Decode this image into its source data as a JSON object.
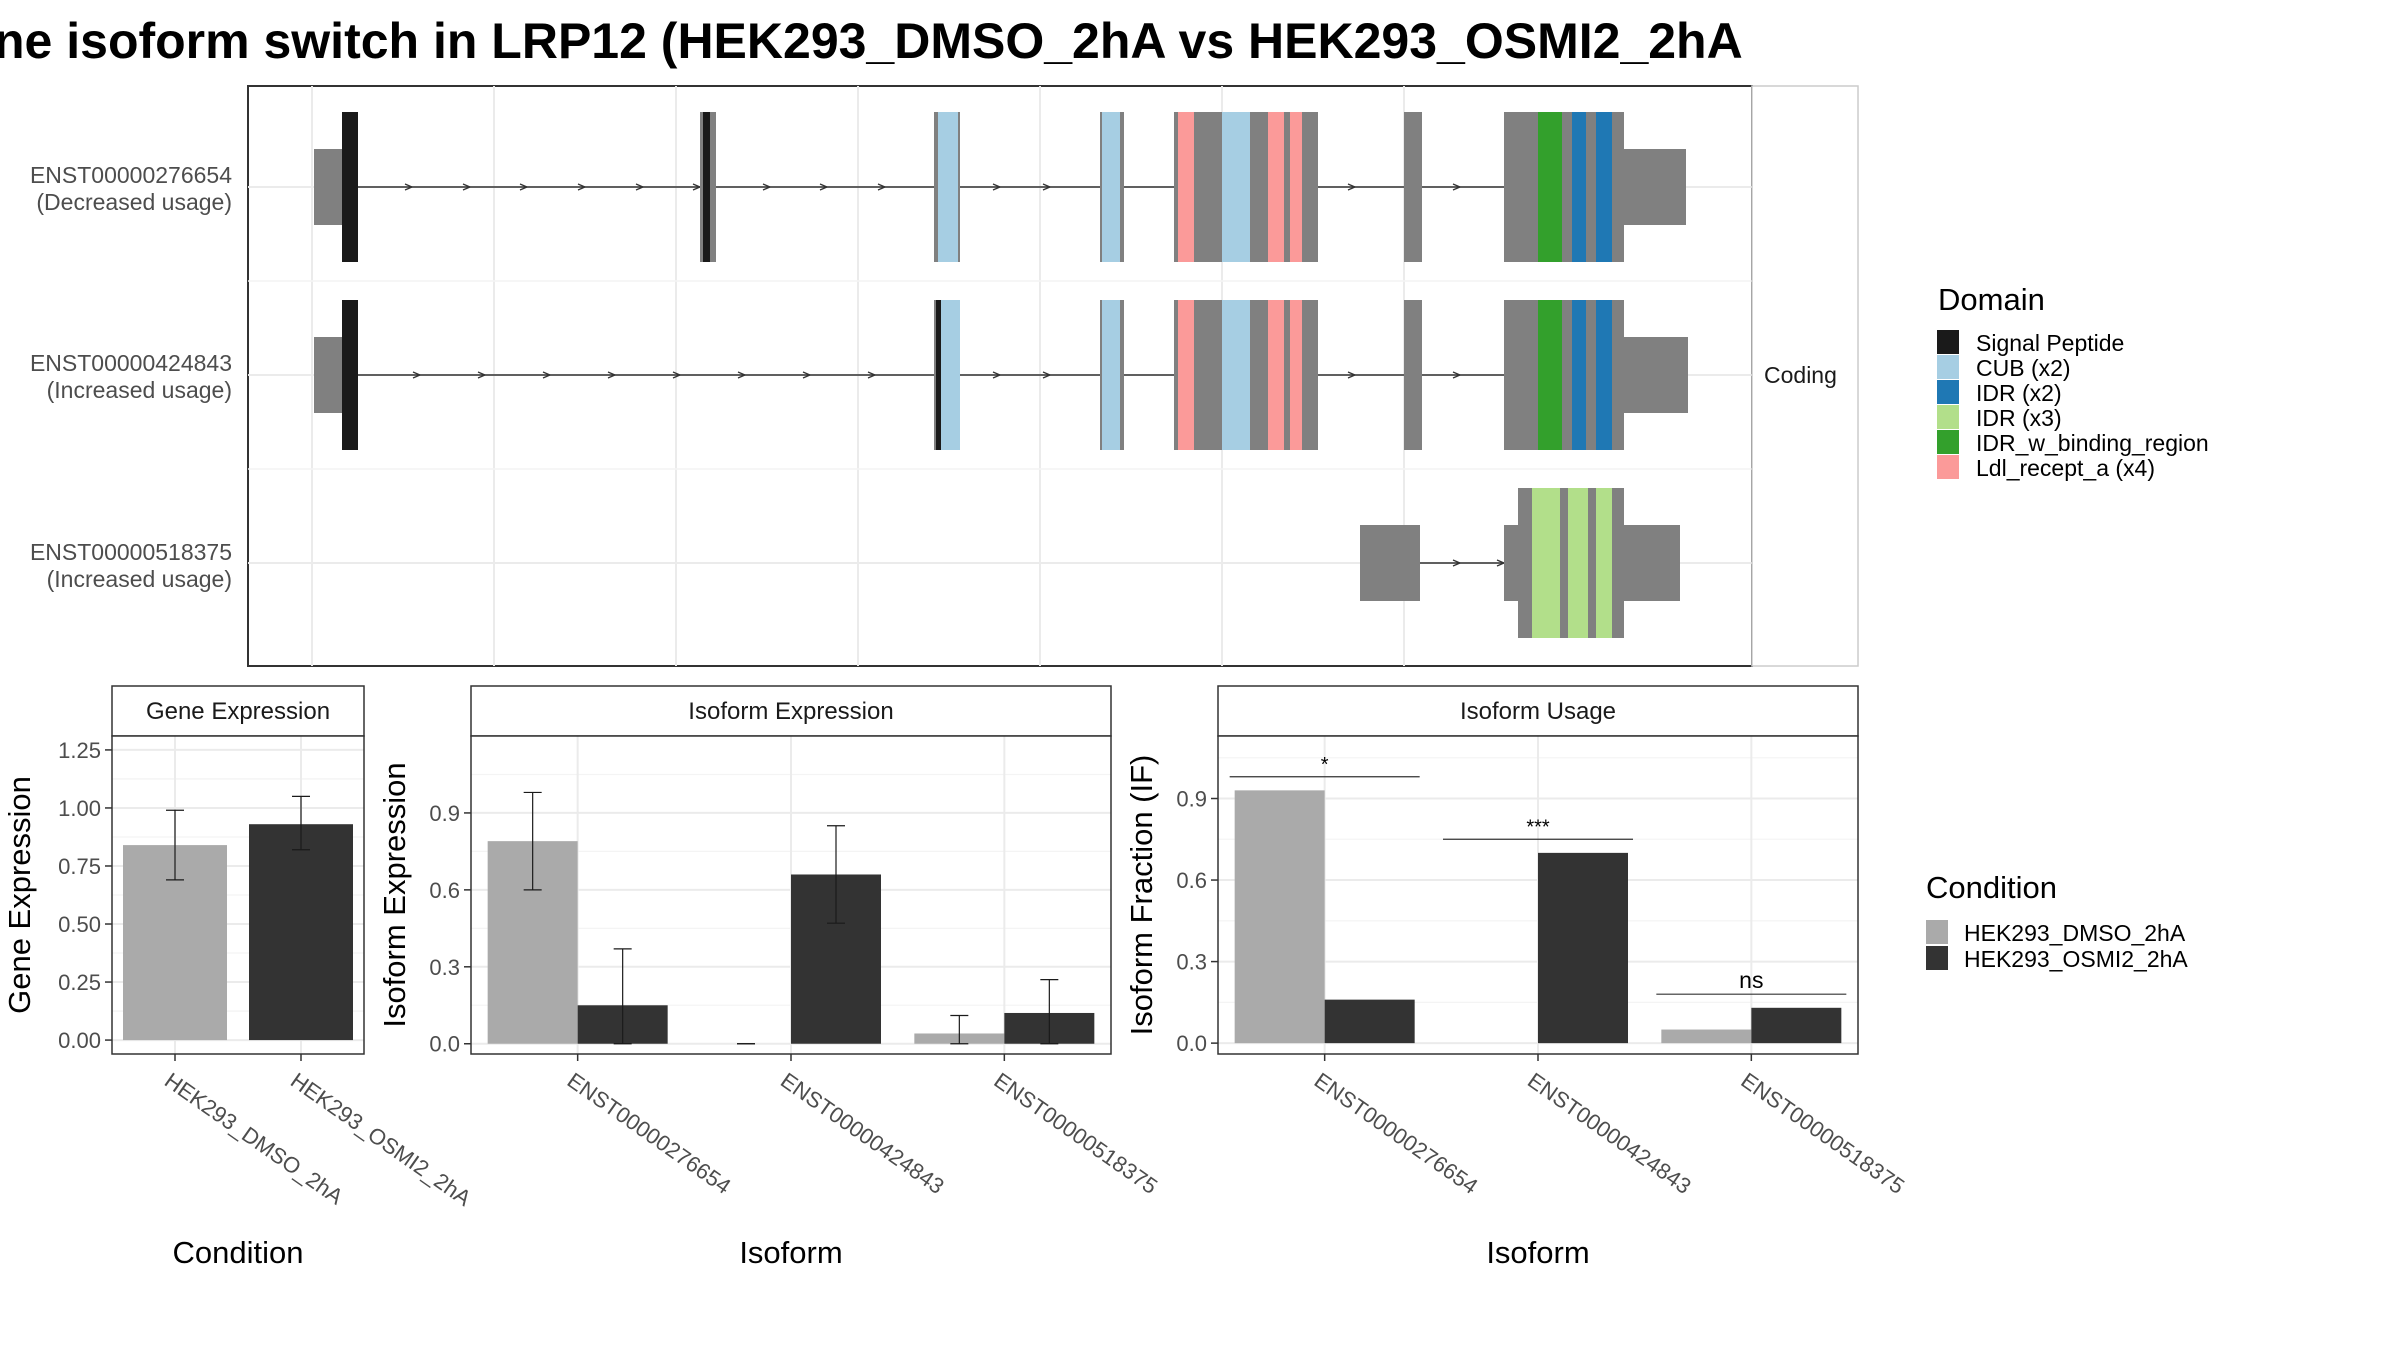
{
  "title": "ne isoform switch in LRP12 (HEK293_DMSO_2hA vs HEK293_OSMI2_2hA",
  "colors": {
    "exon_grey": "#808080",
    "signal_peptide": "#1a1a1a",
    "cub": "#a6cee3",
    "idr_x2": "#1f78b4",
    "idr_x3": "#b2df8a",
    "idr_w_binding_region": "#33a02c",
    "ldl_recept_a": "#fb9a99",
    "dmso": "#aaaaaa",
    "osmi2": "#333333"
  },
  "transcripts": {
    "facet_label": "Coding",
    "rows": [
      {
        "id": "ENST00000276654",
        "usage": "(Decreased usage)"
      },
      {
        "id": "ENST00000424843",
        "usage": "(Increased usage)"
      },
      {
        "id": "ENST00000518375",
        "usage": "(Increased usage)"
      }
    ]
  },
  "domain_legend": {
    "title": "Domain",
    "items": [
      {
        "label": "Signal Peptide",
        "color": "#1a1a1a"
      },
      {
        "label": "CUB (x2)",
        "color": "#a6cee3"
      },
      {
        "label": "IDR (x2)",
        "color": "#1f78b4"
      },
      {
        "label": "IDR (x3)",
        "color": "#b2df8a"
      },
      {
        "label": "IDR_w_binding_region",
        "color": "#33a02c"
      },
      {
        "label": "Ldl_recept_a (x4)",
        "color": "#fb9a99"
      }
    ]
  },
  "condition_legend": {
    "title": "Condition",
    "items": [
      {
        "label": "HEK293_DMSO_2hA",
        "color": "#aaaaaa"
      },
      {
        "label": "HEK293_OSMI2_2hA",
        "color": "#333333"
      }
    ]
  },
  "chart_data": [
    {
      "type": "bar",
      "title": "Gene Expression",
      "xlabel": "Condition",
      "ylabel": "Gene Expression",
      "categories": [
        "HEK293_DMSO_2hA",
        "HEK293_OSMI2_2hA"
      ],
      "values": [
        0.84,
        0.93
      ],
      "errors": [
        [
          0.69,
          0.99
        ],
        [
          0.82,
          1.05
        ]
      ],
      "colors": [
        "#aaaaaa",
        "#333333"
      ],
      "ylim": [
        -0.06,
        1.31
      ],
      "yticks": [
        "0.00",
        "0.25",
        "0.50",
        "0.75",
        "1.00",
        "1.25"
      ]
    },
    {
      "type": "bar",
      "title": "Isoform Expression",
      "xlabel": "Isoform",
      "ylabel": "Isoform Expression",
      "categories": [
        "ENST00000276654",
        "ENST00000424843",
        "ENST00000518375"
      ],
      "series": [
        {
          "name": "HEK293_DMSO_2hA",
          "values": [
            0.79,
            0.0,
            0.04
          ],
          "errors": [
            [
              0.6,
              0.98
            ],
            [
              0.0,
              0.0
            ],
            [
              0.0,
              0.11
            ]
          ]
        },
        {
          "name": "HEK293_OSMI2_2hA",
          "values": [
            0.15,
            0.66,
            0.12
          ],
          "errors": [
            [
              0.0,
              0.37
            ],
            [
              0.47,
              0.85
            ],
            [
              0.0,
              0.25
            ]
          ]
        }
      ],
      "ylim": [
        -0.04,
        1.2
      ],
      "yticks": [
        "0.0",
        "0.3",
        "0.6",
        "0.9"
      ]
    },
    {
      "type": "bar",
      "title": "Isoform Usage",
      "xlabel": "Isoform",
      "ylabel": "Isoform Fraction (IF)",
      "categories": [
        "ENST00000276654",
        "ENST00000424843",
        "ENST00000518375"
      ],
      "series": [
        {
          "name": "HEK293_DMSO_2hA",
          "values": [
            0.93,
            0.0,
            0.05
          ]
        },
        {
          "name": "HEK293_OSMI2_2hA",
          "values": [
            0.16,
            0.7,
            0.13
          ]
        }
      ],
      "significance": [
        "*",
        "***",
        "ns"
      ],
      "ylim": [
        -0.04,
        1.13
      ],
      "yticks": [
        "0.0",
        "0.3",
        "0.6",
        "0.9"
      ]
    }
  ]
}
